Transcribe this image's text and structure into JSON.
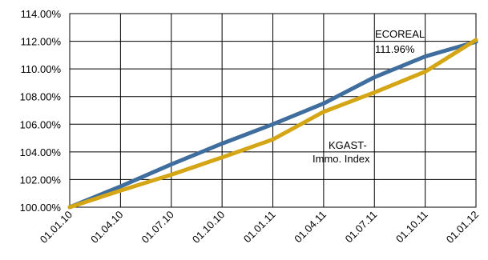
{
  "chart_data": {
    "type": "line",
    "x": [
      "01.01.10",
      "01.04.10",
      "01.07.10",
      "01.10.10",
      "01.01.11",
      "01.04.11",
      "01.07.11",
      "01.10.11",
      "01.01.12"
    ],
    "y_ticks": [
      "100.00%",
      "102.00%",
      "104.00%",
      "106.00%",
      "108.00%",
      "110.00%",
      "112.00%",
      "114.00%"
    ],
    "ylim": [
      100,
      114
    ],
    "grid": true,
    "series": [
      {
        "name": "ECOREAL",
        "color": "#3F6E9E",
        "values": [
          100.0,
          101.5,
          103.1,
          104.6,
          106.0,
          107.5,
          109.4,
          110.9,
          111.96
        ]
      },
      {
        "name": "KGAST-Immo. Index",
        "color": "#D4A514",
        "values": [
          100.0,
          101.2,
          102.35,
          103.6,
          104.9,
          106.9,
          108.3,
          109.8,
          112.1
        ]
      }
    ],
    "annotations": {
      "ecoreal_line1": "ECOREAL",
      "ecoreal_line2": "111.96%",
      "kgast_line1": "KGAST-",
      "kgast_line2": "Immo. Index"
    }
  }
}
